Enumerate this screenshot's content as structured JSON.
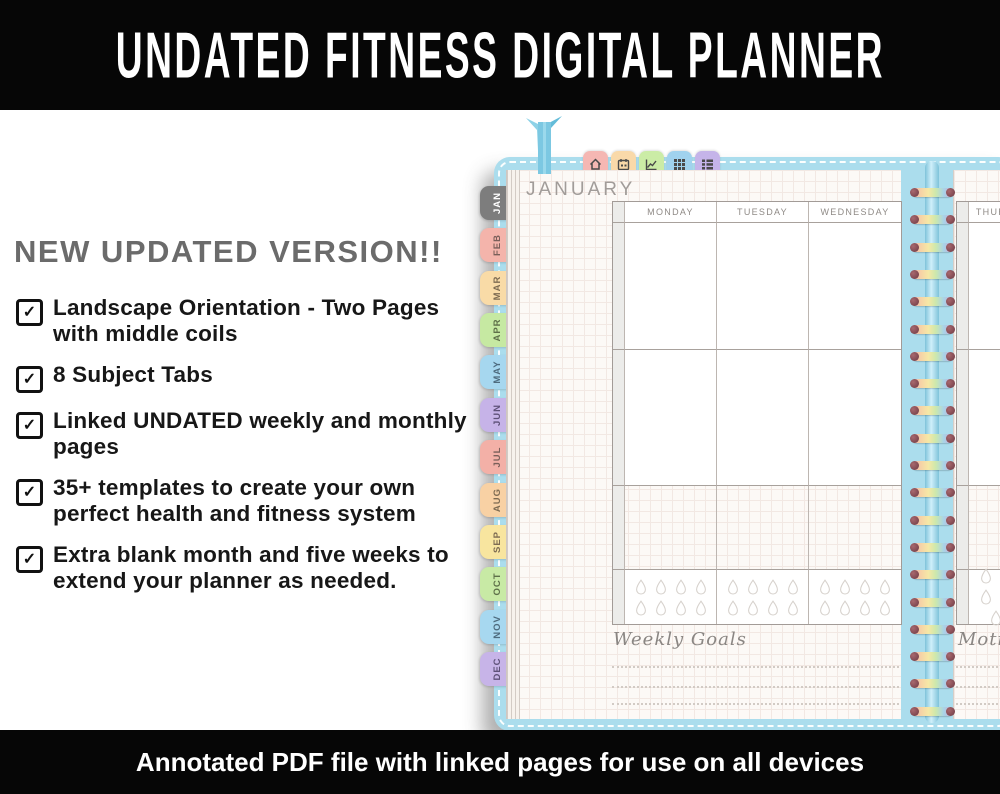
{
  "banners": {
    "top": "UNDATED FITNESS DIGITAL PLANNER",
    "bottom": "Annotated PDF file with linked pages for use on all devices"
  },
  "promo": {
    "heading": "NEW UPDATED VERSION!!",
    "check_glyph": "✓",
    "features": [
      "Landscape Orientation - Two Pages with middle coils",
      "8 Subject Tabs",
      "Linked UNDATED weekly and monthly pages",
      "35+ templates to create your own perfect health and fitness system",
      "Extra blank month and five weeks to extend your planner as needed."
    ]
  },
  "planner": {
    "month_title": "JANUARY",
    "side_tabs": [
      {
        "label": "JAN",
        "color": "#7d7d7d",
        "text": "#ffffff",
        "active": true
      },
      {
        "label": "FEB",
        "color": "#f4b4ab",
        "text": "#7a5f5a"
      },
      {
        "label": "MAR",
        "color": "#f9dba7",
        "text": "#7d6b52"
      },
      {
        "label": "APR",
        "color": "#c6e9a2",
        "text": "#5e7049"
      },
      {
        "label": "MAY",
        "color": "#a6d7ef",
        "text": "#4e6b7e"
      },
      {
        "label": "JUN",
        "color": "#c6b3e8",
        "text": "#5e5178"
      },
      {
        "label": "JUL",
        "color": "#f3b0a7",
        "text": "#7a5f5a"
      },
      {
        "label": "AUG",
        "color": "#f8d1a4",
        "text": "#7d6b52"
      },
      {
        "label": "SEP",
        "color": "#f8e59f",
        "text": "#7d6b52"
      },
      {
        "label": "OCT",
        "color": "#c8eaa5",
        "text": "#5e7049"
      },
      {
        "label": "NOV",
        "color": "#a7d8f0",
        "text": "#4e6b7e"
      },
      {
        "label": "DEC",
        "color": "#c7b4e8",
        "text": "#5e5178"
      }
    ],
    "top_tabs": [
      {
        "icon": "home-icon",
        "color": "#f5b7b3"
      },
      {
        "icon": "calendar-icon",
        "color": "#f9d9a9"
      },
      {
        "icon": "chart-icon",
        "color": "#cbeca6"
      },
      {
        "icon": "grid-icon",
        "color": "#a0d2ee"
      },
      {
        "icon": "table-icon",
        "color": "#c5b4e9"
      }
    ],
    "left_page": {
      "day_headers": [
        "MONDAY",
        "TUESDAY",
        "WEDNESDAY"
      ],
      "footer_label": "Weekly Goals"
    },
    "right_page": {
      "day_headers": [
        "THURSDAY"
      ],
      "footer_label": "Motivation"
    },
    "water_tracker": {
      "rows": 2,
      "cols": 4
    },
    "coil": {
      "ring_count": 20
    }
  }
}
